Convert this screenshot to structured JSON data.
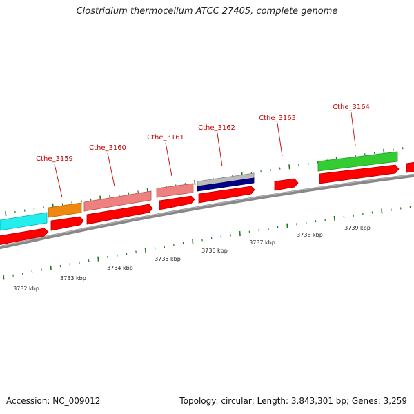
{
  "title": "Clostridium thermocellum ATCC 27405, complete genome",
  "footer": {
    "accession": "Accession: NC_009012",
    "stats": "Topology: circular; Length: 3,843,301 bp; Genes: 3,259"
  },
  "colors": {
    "background": "#ffffff",
    "backbone": "#888888",
    "cds_forward": "#ff0000",
    "gene_label": "#cc0000",
    "tick": "#1a7a1a"
  },
  "genes": [
    {
      "label": "Cthe_3159"
    },
    {
      "label": "Cthe_3160"
    },
    {
      "label": "Cthe_3161"
    },
    {
      "label": "Cthe_3162"
    },
    {
      "label": "Cthe_3163"
    },
    {
      "label": "Cthe_3164"
    }
  ],
  "scale_labels": [
    "3732 kbp",
    "3733 kbp",
    "3734 kbp",
    "3735 kbp",
    "3736 kbp",
    "3737 kbp",
    "3738 kbp",
    "3739 kbp"
  ],
  "feature_colors": {
    "cyan": "#22eeee",
    "orange": "#ee8811",
    "salmon": "#ee8080",
    "grey": "#bbbbbb",
    "navy": "#000088",
    "green": "#33cc33"
  }
}
